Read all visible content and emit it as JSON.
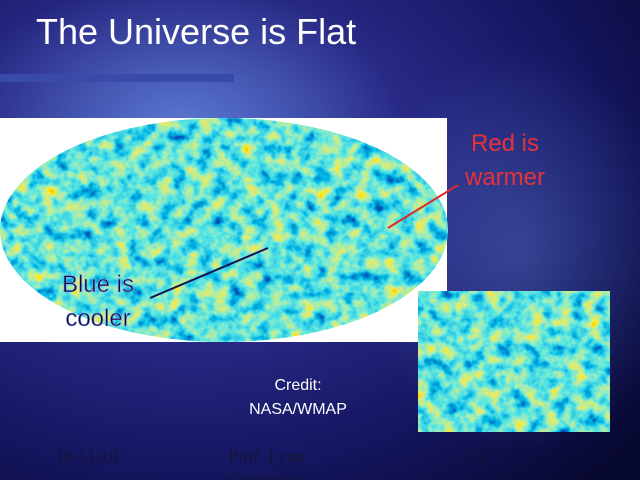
{
  "slide": {
    "title": "The Universe is Flat",
    "red_label": [
      "Red is",
      "warmer"
    ],
    "blue_label": [
      "Blue is",
      "cooler"
    ],
    "credit": [
      "Credit:",
      "NASA/WMAP"
    ],
    "footer": {
      "date": "10/11/10",
      "author": [
        "Prof. Lynn",
        "Cominsky"
      ],
      "page": "34"
    }
  }
}
